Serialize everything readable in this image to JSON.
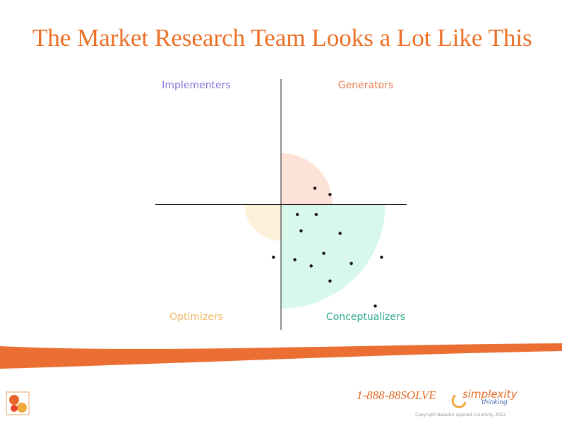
{
  "title": "The Market Research Team Looks a Lot Like This",
  "chart_data": {
    "type": "scatter",
    "xlim": [
      -1,
      1
    ],
    "ylim": [
      -1,
      1
    ],
    "quadrants": [
      {
        "label": "Implementers",
        "position": "top-left",
        "color": "#8b72d8",
        "fill": null,
        "radius": null
      },
      {
        "label": "Generators",
        "position": "top-right",
        "color": "#ea7d50",
        "fill": "#fde2d8",
        "radius": 0.41
      },
      {
        "label": "Optimizers",
        "position": "bottom-left",
        "color": "#f0b560",
        "fill": "#fdf1dc",
        "radius": 0.29
      },
      {
        "label": "Conceptualizers",
        "position": "bottom-right",
        "color": "#2aa98a",
        "fill": "#d8f8eb",
        "radius": 0.83
      }
    ],
    "x": [
      0.27,
      0.39,
      0.13,
      0.28,
      0.16,
      0.47,
      -0.06,
      0.11,
      0.34,
      0.24,
      0.56,
      0.8,
      0.39,
      0.75
    ],
    "values": [
      0.13,
      0.08,
      -0.08,
      -0.08,
      -0.21,
      -0.23,
      -0.42,
      -0.44,
      -0.39,
      -0.49,
      -0.47,
      -0.42,
      -0.61,
      -0.81
    ],
    "color": "#111111"
  },
  "footer": {
    "phone": "1-888-88SOLVE",
    "brand": "simplexity",
    "brand_sub": "thinking",
    "copyright": "Copyright Basadur Applied Creativity 2012"
  }
}
